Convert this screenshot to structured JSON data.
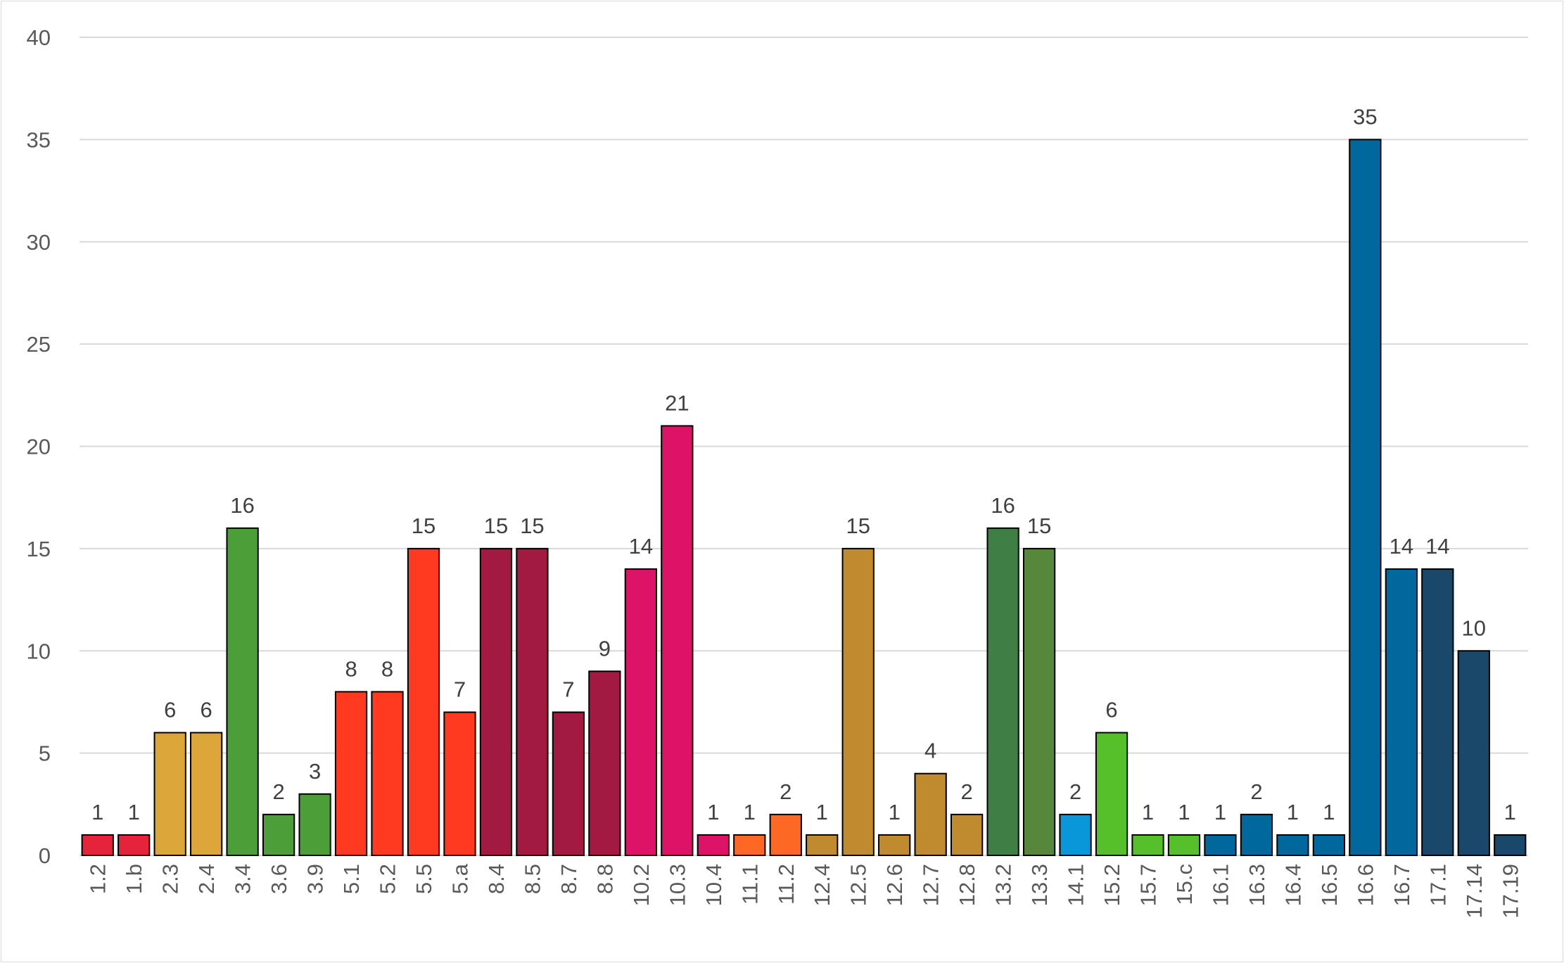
{
  "chart_data": {
    "type": "bar",
    "title": "",
    "xlabel": "",
    "ylabel": "",
    "ylim": [
      0,
      40
    ],
    "yticks": [
      0,
      5,
      10,
      15,
      20,
      25,
      30,
      35,
      40
    ],
    "grid": true,
    "legend": "none",
    "categories": [
      "1.2",
      "1.b",
      "2.3",
      "2.4",
      "3.4",
      "3.6",
      "3.9",
      "5.1",
      "5.2",
      "5.5",
      "5.a",
      "8.4",
      "8.5",
      "8.7",
      "8.8",
      "10.2",
      "10.3",
      "10.4",
      "11.1",
      "11.2",
      "12.4",
      "12.5",
      "12.6",
      "12.7",
      "12.8",
      "13.2",
      "13.3",
      "14.1",
      "15.2",
      "15.7",
      "15.c",
      "16.1",
      "16.3",
      "16.4",
      "16.5",
      "16.6",
      "16.7",
      "17.1",
      "17.14",
      "17.19"
    ],
    "values": [
      1,
      1,
      6,
      6,
      16,
      2,
      3,
      8,
      8,
      15,
      7,
      15,
      15,
      7,
      9,
      14,
      21,
      1,
      1,
      2,
      1,
      15,
      1,
      4,
      2,
      16,
      15,
      2,
      6,
      1,
      1,
      1,
      2,
      1,
      1,
      35,
      14,
      14,
      10,
      1
    ],
    "colors": [
      "#e5243b",
      "#e5243b",
      "#dda63a",
      "#dda63a",
      "#4c9f38",
      "#4c9f38",
      "#4c9f38",
      "#ff3a21",
      "#ff3a21",
      "#ff3a21",
      "#ff3a21",
      "#a21942",
      "#a21942",
      "#a21942",
      "#a21942",
      "#dd1367",
      "#dd1367",
      "#dd1367",
      "#fd6925",
      "#fd6925",
      "#bf8b2e",
      "#bf8b2e",
      "#bf8b2e",
      "#bf8b2e",
      "#bf8b2e",
      "#3f7e44",
      "#56873a",
      "#0a97d9",
      "#56c02b",
      "#56c02b",
      "#56c02b",
      "#00689d",
      "#00689d",
      "#00689d",
      "#00689d",
      "#00689d",
      "#00689d",
      "#19486a",
      "#19486a",
      "#19486a"
    ]
  }
}
